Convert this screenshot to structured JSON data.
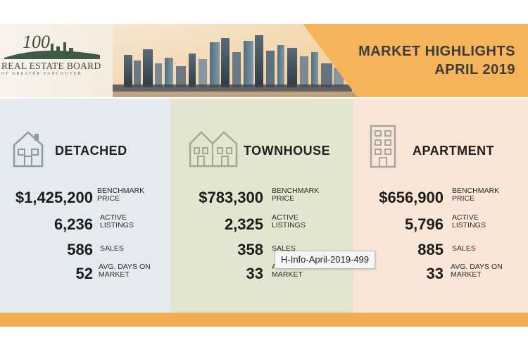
{
  "header": {
    "title_line1": "MARKET HIGHLIGHTS",
    "title_line2": "APRIL 2019",
    "logo": {
      "number": "100",
      "text": "REAL ESTATE BOARD",
      "subtext": "OF GREATER VANCOUVER"
    }
  },
  "columns": [
    {
      "type": "DETACHED",
      "icon": "house-icon",
      "stats": [
        {
          "value": "$1,425,200",
          "label1": "BENCHMARK",
          "label2": "PRICE"
        },
        {
          "value": "6,236",
          "label1": "ACTIVE",
          "label2": "LISTINGS"
        },
        {
          "value": "586",
          "label1": "SALES",
          "label2": ""
        },
        {
          "value": "52",
          "label1": "AVG. DAYS ON",
          "label2": "MARKET"
        }
      ]
    },
    {
      "type": "TOWNHOUSE",
      "icon": "townhouse-icon",
      "stats": [
        {
          "value": "$783,300",
          "label1": "BENCHMARK",
          "label2": "PRICE"
        },
        {
          "value": "2,325",
          "label1": "ACTIVE",
          "label2": "LISTINGS"
        },
        {
          "value": "358",
          "label1": "SALES",
          "label2": ""
        },
        {
          "value": "33",
          "label1": "AVG. DAYS ON",
          "label2": "MARKET"
        }
      ]
    },
    {
      "type": "APARTMENT",
      "icon": "apartment-icon",
      "stats": [
        {
          "value": "$656,900",
          "label1": "BENCHMARK",
          "label2": "PRICE"
        },
        {
          "value": "5,796",
          "label1": "ACTIVE",
          "label2": "LISTINGS"
        },
        {
          "value": "885",
          "label1": "SALES",
          "label2": ""
        },
        {
          "value": "33",
          "label1": "AVG. DAYS ON",
          "label2": "MARKET"
        }
      ]
    }
  ],
  "tooltip": {
    "text": "H-Info-April-2019-499"
  },
  "colors": {
    "header_orange": "#f6b45a",
    "detached_bg": "#e4ebee",
    "townhouse_bg": "#e3e6cf",
    "apartment_bg": "#f9e6d6",
    "footer_bar": "#f3ad52"
  }
}
